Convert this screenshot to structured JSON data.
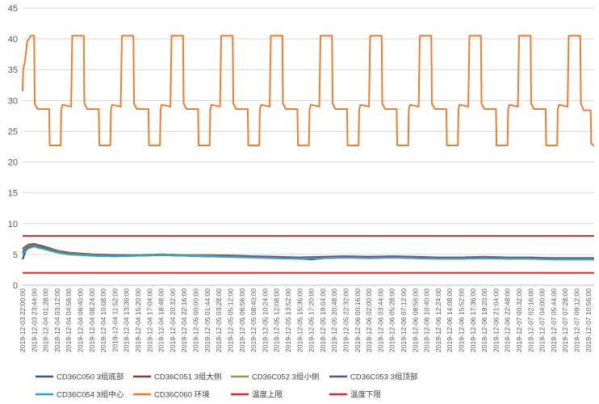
{
  "chart_data": {
    "type": "line",
    "title": "",
    "xlabel": "",
    "ylabel": "",
    "ylim": [
      0,
      45
    ],
    "yticks": [
      0,
      5,
      10,
      15,
      20,
      25,
      30,
      35,
      40,
      45
    ],
    "grid": true,
    "legend_position": "bottom",
    "categories": [
      "2019-12-03 22:00:00",
      "2019-12-03 23:44:00",
      "2019-12-04 01:28:00",
      "2019-12-04 03:12:00",
      "2019-12-04 04:56:00",
      "2019-12-04 06:40:00",
      "2019-12-04 08:24:00",
      "2019-12-04 10:08:00",
      "2019-12-04 11:52:00",
      "2019-12-04 13:36:00",
      "2019-12-04 15:20:00",
      "2019-12-04 17:04:00",
      "2019-12-04 18:48:00",
      "2019-12-04 20:32:00",
      "2019-12-04 22:16:00",
      "2019-12-05 00:00:00",
      "2019-12-05 01:44:00",
      "2019-12-05 03:28:00",
      "2019-12-05 05:12:00",
      "2019-12-05 06:56:00",
      "2019-12-05 08:40:00",
      "2019-12-05 10:24:00",
      "2019-12-05 12:08:00",
      "2019-12-05 13:52:00",
      "2019-12-05 15:36:00",
      "2019-12-05 17:20:00",
      "2019-12-05 19:04:00",
      "2019-12-05 20:48:00",
      "2019-12-05 22:32:00",
      "2019-12-06 00:16:00",
      "2019-12-06 02:00:00",
      "2019-12-06 03:44:00",
      "2019-12-06 05:28:00",
      "2019-12-06 07:12:00",
      "2019-12-06 08:56:00",
      "2019-12-06 10:40:00",
      "2019-12-06 12:24:00",
      "2019-12-06 14:08:00",
      "2019-12-06 15:52:00",
      "2019-12-06 17:36:00",
      "2019-12-06 19:20:00",
      "2019-12-06 21:04:00",
      "2019-12-06 22:48:00",
      "2019-12-07 00:32:00",
      "2019-12-07 02:16:00",
      "2019-12-07 04:00:00",
      "2019-12-07 05:44:00",
      "2019-12-07 07:28:00",
      "2019-12-07 09:12:00",
      "2019-12-07 10:56:00"
    ],
    "x_index_range": [
      0,
      49.5
    ],
    "series": [
      {
        "name": "CD36C050 3组底部",
        "color": "#2e5a8c",
        "points": [
          [
            0,
            4.2
          ],
          [
            0.4,
            6.3
          ],
          [
            1,
            6.5
          ],
          [
            1.6,
            6.3
          ],
          [
            2.5,
            5.7
          ],
          [
            4,
            5.2
          ],
          [
            5,
            5.0
          ],
          [
            6,
            4.8
          ],
          [
            8,
            4.7
          ],
          [
            10,
            4.8
          ],
          [
            12,
            4.9
          ],
          [
            14,
            4.8
          ],
          [
            16,
            4.7
          ],
          [
            18,
            4.6
          ],
          [
            20,
            4.5
          ],
          [
            22,
            4.4
          ],
          [
            24,
            4.3
          ],
          [
            25,
            4.2
          ],
          [
            26,
            4.4
          ],
          [
            28,
            4.5
          ],
          [
            30,
            4.4
          ],
          [
            32,
            4.5
          ],
          [
            34,
            4.4
          ],
          [
            36,
            4.3
          ],
          [
            38,
            4.3
          ],
          [
            40,
            4.4
          ],
          [
            42,
            4.3
          ],
          [
            44,
            4.3
          ],
          [
            46,
            4.2
          ],
          [
            48,
            4.2
          ],
          [
            49.5,
            4.2
          ]
        ]
      },
      {
        "name": "CD36C051 3组大侧",
        "color": "#8b3a3a",
        "points": [
          [
            0,
            5.9
          ],
          [
            0.5,
            6.6
          ],
          [
            1,
            6.7
          ],
          [
            2,
            6.2
          ],
          [
            3,
            5.6
          ],
          [
            4,
            5.3
          ],
          [
            6,
            5.0
          ],
          [
            8,
            4.9
          ],
          [
            10,
            4.9
          ],
          [
            12,
            5.0
          ],
          [
            14,
            4.9
          ],
          [
            16,
            4.9
          ],
          [
            18,
            4.8
          ],
          [
            20,
            4.7
          ],
          [
            22,
            4.6
          ],
          [
            24,
            4.5
          ],
          [
            26,
            4.6
          ],
          [
            28,
            4.7
          ],
          [
            30,
            4.6
          ],
          [
            32,
            4.7
          ],
          [
            34,
            4.6
          ],
          [
            36,
            4.5
          ],
          [
            38,
            4.5
          ],
          [
            40,
            4.6
          ],
          [
            42,
            4.5
          ],
          [
            44,
            4.5
          ],
          [
            46,
            4.4
          ],
          [
            48,
            4.4
          ],
          [
            49.5,
            4.4
          ]
        ]
      },
      {
        "name": "CD36C052 3组小侧",
        "color": "#7fa74a",
        "points": [
          [
            0,
            5.6
          ],
          [
            0.5,
            6.4
          ],
          [
            1,
            6.5
          ],
          [
            2,
            6.0
          ],
          [
            3,
            5.5
          ],
          [
            4,
            5.2
          ],
          [
            6,
            4.9
          ],
          [
            8,
            4.8
          ],
          [
            10,
            4.9
          ],
          [
            12,
            5.0
          ],
          [
            14,
            4.9
          ],
          [
            16,
            4.8
          ],
          [
            18,
            4.7
          ],
          [
            20,
            4.6
          ],
          [
            22,
            4.5
          ],
          [
            24,
            4.4
          ],
          [
            26,
            4.5
          ],
          [
            28,
            4.6
          ],
          [
            30,
            4.5
          ],
          [
            32,
            4.6
          ],
          [
            34,
            4.5
          ],
          [
            36,
            4.4
          ],
          [
            38,
            4.4
          ],
          [
            40,
            4.5
          ],
          [
            42,
            4.4
          ],
          [
            44,
            4.4
          ],
          [
            46,
            4.3
          ],
          [
            48,
            4.3
          ],
          [
            49.5,
            4.3
          ]
        ]
      },
      {
        "name": "CD36C053 3组顶部",
        "color": "#6a4a8c",
        "points": [
          [
            0,
            5.3
          ],
          [
            0.5,
            6.2
          ],
          [
            1,
            6.4
          ],
          [
            2,
            5.9
          ],
          [
            3,
            5.4
          ],
          [
            4,
            5.1
          ],
          [
            6,
            4.8
          ],
          [
            8,
            4.8
          ],
          [
            10,
            4.8
          ],
          [
            12,
            4.9
          ],
          [
            14,
            4.8
          ],
          [
            16,
            4.7
          ],
          [
            18,
            4.7
          ],
          [
            20,
            4.6
          ],
          [
            22,
            4.5
          ],
          [
            24,
            4.4
          ],
          [
            26,
            4.5
          ],
          [
            28,
            4.6
          ],
          [
            30,
            4.5
          ],
          [
            32,
            4.6
          ],
          [
            34,
            4.5
          ],
          [
            36,
            4.4
          ],
          [
            38,
            4.4
          ],
          [
            40,
            4.5
          ],
          [
            42,
            4.4
          ],
          [
            44,
            4.4
          ],
          [
            46,
            4.3
          ],
          [
            48,
            4.3
          ],
          [
            49.5,
            4.3
          ]
        ]
      },
      {
        "name": "CD36C054 3组中心",
        "color": "#3aa0c0",
        "points": [
          [
            0,
            5.0
          ],
          [
            0.5,
            6.0
          ],
          [
            1,
            6.3
          ],
          [
            2,
            5.8
          ],
          [
            3,
            5.3
          ],
          [
            4,
            5.0
          ],
          [
            6,
            4.8
          ],
          [
            8,
            4.7
          ],
          [
            10,
            4.8
          ],
          [
            12,
            4.9
          ],
          [
            14,
            4.8
          ],
          [
            16,
            4.7
          ],
          [
            18,
            4.6
          ],
          [
            20,
            4.5
          ],
          [
            22,
            4.4
          ],
          [
            24,
            4.3
          ],
          [
            26,
            4.4
          ],
          [
            28,
            4.5
          ],
          [
            30,
            4.4
          ],
          [
            32,
            4.5
          ],
          [
            34,
            4.4
          ],
          [
            36,
            4.3
          ],
          [
            38,
            4.3
          ],
          [
            40,
            4.4
          ],
          [
            42,
            4.3
          ],
          [
            44,
            4.3
          ],
          [
            46,
            4.2
          ],
          [
            48,
            4.2
          ],
          [
            49.5,
            4.2
          ]
        ]
      },
      {
        "name": "CD36C060 环境",
        "color": "#ed7d31",
        "points": [
          [
            0,
            31.5
          ],
          [
            0.05,
            35
          ],
          [
            0.2,
            36.3
          ],
          [
            0.4,
            39.5
          ],
          [
            0.7,
            40.5
          ],
          [
            1.0,
            40.5
          ],
          [
            1.05,
            29.5
          ],
          [
            1.3,
            28.6
          ],
          [
            2.3,
            28.6
          ],
          [
            2.35,
            22.7
          ],
          [
            3.3,
            22.7
          ],
          [
            3.35,
            28.5
          ],
          [
            3.45,
            29.3
          ],
          [
            4.2,
            29.0
          ],
          [
            4.3,
            40.5
          ],
          [
            5.3,
            40.5
          ],
          [
            5.35,
            29.5
          ],
          [
            5.6,
            28.6
          ],
          [
            6.6,
            28.6
          ],
          [
            6.65,
            22.7
          ],
          [
            7.6,
            22.7
          ],
          [
            7.65,
            28.5
          ],
          [
            7.75,
            29.3
          ],
          [
            8.5,
            29.0
          ],
          [
            8.6,
            40.5
          ],
          [
            9.6,
            40.5
          ],
          [
            9.65,
            29.5
          ],
          [
            9.9,
            28.6
          ],
          [
            10.9,
            28.6
          ],
          [
            10.95,
            22.7
          ],
          [
            11.9,
            22.7
          ],
          [
            11.95,
            28.5
          ],
          [
            12.05,
            29.3
          ],
          [
            12.8,
            29.0
          ],
          [
            12.9,
            40.5
          ],
          [
            13.9,
            40.5
          ],
          [
            13.95,
            29.5
          ],
          [
            14.2,
            28.6
          ],
          [
            15.2,
            28.6
          ],
          [
            15.25,
            22.7
          ],
          [
            16.2,
            22.7
          ],
          [
            16.25,
            28.5
          ],
          [
            16.35,
            29.3
          ],
          [
            17.1,
            29.0
          ],
          [
            17.2,
            40.5
          ],
          [
            18.2,
            40.5
          ],
          [
            18.25,
            29.5
          ],
          [
            18.5,
            28.6
          ],
          [
            19.5,
            28.6
          ],
          [
            19.55,
            22.7
          ],
          [
            20.5,
            22.7
          ],
          [
            20.55,
            28.5
          ],
          [
            20.65,
            29.3
          ],
          [
            21.4,
            29.0
          ],
          [
            21.5,
            40.5
          ],
          [
            22.5,
            40.5
          ],
          [
            22.55,
            29.5
          ],
          [
            22.8,
            28.6
          ],
          [
            23.8,
            28.6
          ],
          [
            23.85,
            22.7
          ],
          [
            24.8,
            22.7
          ],
          [
            24.85,
            28.5
          ],
          [
            24.95,
            29.3
          ],
          [
            25.7,
            29.0
          ],
          [
            25.8,
            40.5
          ],
          [
            26.8,
            40.5
          ],
          [
            26.85,
            29.5
          ],
          [
            27.1,
            28.6
          ],
          [
            28.1,
            28.6
          ],
          [
            28.15,
            22.7
          ],
          [
            29.1,
            22.7
          ],
          [
            29.15,
            28.5
          ],
          [
            29.25,
            29.3
          ],
          [
            30.0,
            29.0
          ],
          [
            30.1,
            40.5
          ],
          [
            31.1,
            40.5
          ],
          [
            31.15,
            29.5
          ],
          [
            31.4,
            28.6
          ],
          [
            32.4,
            28.6
          ],
          [
            32.45,
            22.7
          ],
          [
            33.4,
            22.7
          ],
          [
            33.45,
            28.5
          ],
          [
            33.55,
            29.3
          ],
          [
            34.3,
            29.0
          ],
          [
            34.4,
            40.5
          ],
          [
            35.4,
            40.5
          ],
          [
            35.45,
            29.5
          ],
          [
            35.7,
            28.6
          ],
          [
            36.7,
            28.6
          ],
          [
            36.75,
            22.7
          ],
          [
            37.7,
            22.7
          ],
          [
            37.75,
            28.5
          ],
          [
            37.85,
            29.3
          ],
          [
            38.6,
            29.0
          ],
          [
            38.7,
            40.5
          ],
          [
            39.7,
            40.5
          ],
          [
            39.75,
            29.5
          ],
          [
            40.0,
            28.6
          ],
          [
            41.0,
            28.6
          ],
          [
            41.05,
            22.7
          ],
          [
            42.0,
            22.7
          ],
          [
            42.05,
            28.5
          ],
          [
            42.15,
            29.3
          ],
          [
            42.9,
            29.0
          ],
          [
            43.0,
            40.5
          ],
          [
            44.0,
            40.5
          ],
          [
            44.05,
            29.5
          ],
          [
            44.3,
            28.6
          ],
          [
            45.3,
            28.6
          ],
          [
            45.35,
            22.7
          ],
          [
            46.3,
            22.7
          ],
          [
            46.35,
            28.5
          ],
          [
            46.45,
            29.3
          ],
          [
            47.2,
            29.0
          ],
          [
            47.3,
            40.5
          ],
          [
            48.3,
            40.5
          ],
          [
            48.35,
            29.5
          ],
          [
            48.6,
            28.4
          ],
          [
            49.2,
            28.4
          ],
          [
            49.25,
            23.0
          ],
          [
            49.5,
            22.6
          ]
        ]
      },
      {
        "name": "温度上限",
        "color": "#e8262c",
        "constant": 8
      },
      {
        "name": "温度下限",
        "color": "#e8262c",
        "constant": 2
      }
    ]
  }
}
